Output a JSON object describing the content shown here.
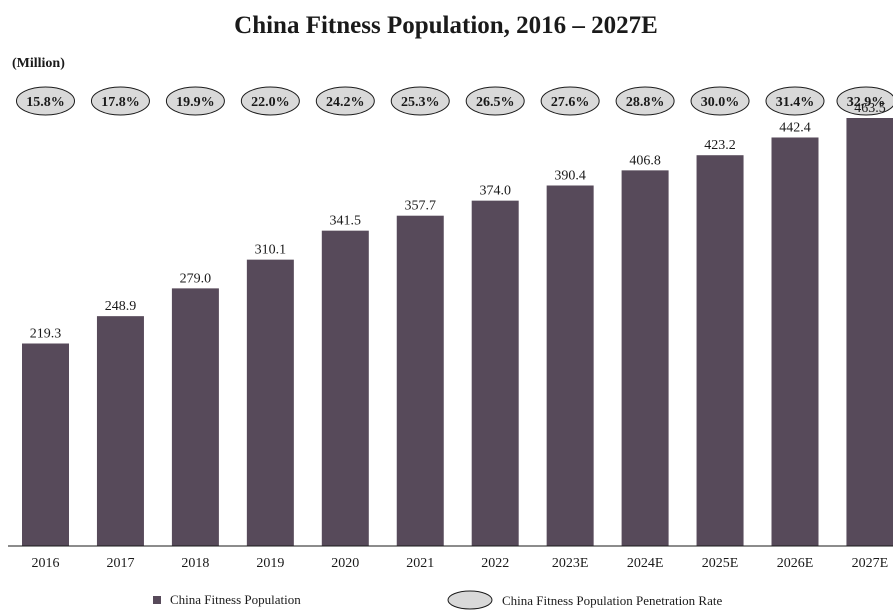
{
  "chart_data": {
    "type": "bar",
    "title": "China Fitness Population, 2016 – 2027E",
    "unit_label": "(Million)",
    "categories": [
      "2016",
      "2017",
      "2018",
      "2019",
      "2020",
      "2021",
      "2022",
      "2023E",
      "2024E",
      "2025E",
      "2026E",
      "2027E"
    ],
    "series": [
      {
        "name": "China Fitness Population",
        "values": [
          219.3,
          248.9,
          279.0,
          310.1,
          341.5,
          357.7,
          374.0,
          390.4,
          406.8,
          423.2,
          442.4,
          463.5
        ],
        "labels": [
          "219.3",
          "248.9",
          "279.0",
          "310.1",
          "341.5",
          "357.7",
          "374.0",
          "390.4",
          "406.8",
          "423.2",
          "442.4",
          "463.5"
        ],
        "color": "#574a5a"
      },
      {
        "name": "China Fitness Population Penetration Rate",
        "values": [
          15.8,
          17.8,
          19.9,
          22.0,
          24.2,
          25.3,
          26.5,
          27.6,
          28.8,
          30.0,
          31.4,
          32.9
        ],
        "labels": [
          "15.8%",
          "17.8%",
          "19.9%",
          "22.0%",
          "24.2%",
          "25.3%",
          "26.5%",
          "27.6%",
          "28.8%",
          "30.0%",
          "31.4%",
          "32.9%"
        ],
        "color": "#d9d9d9"
      }
    ],
    "ylim": [
      0,
      463.5
    ],
    "grid": false,
    "legend_position": "bottom"
  }
}
